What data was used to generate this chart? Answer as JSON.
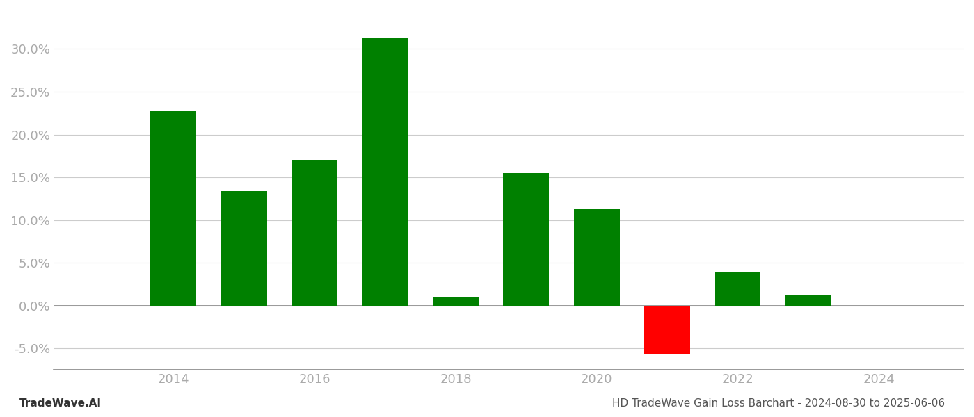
{
  "years": [
    2014,
    2015,
    2016,
    2017,
    2018,
    2019,
    2020,
    2021,
    2022,
    2023
  ],
  "values": [
    0.227,
    0.134,
    0.17,
    0.313,
    0.01,
    0.155,
    0.113,
    -0.057,
    0.039,
    0.013
  ],
  "bar_colors": [
    "#008000",
    "#008000",
    "#008000",
    "#008000",
    "#008000",
    "#008000",
    "#008000",
    "#ff0000",
    "#008000",
    "#008000"
  ],
  "xlim": [
    2012.3,
    2025.2
  ],
  "ylim": [
    -0.075,
    0.345
  ],
  "yticks": [
    -0.05,
    0.0,
    0.05,
    0.1,
    0.15,
    0.2,
    0.25,
    0.3
  ],
  "xticks": [
    2014,
    2016,
    2018,
    2020,
    2022,
    2024
  ],
  "title": "HD TradeWave Gain Loss Barchart - 2024-08-30 to 2025-06-06",
  "watermark": "TradeWave.AI",
  "background_color": "#ffffff",
  "grid_color": "#cccccc",
  "bar_width": 0.65,
  "tick_label_color": "#aaaaaa",
  "title_color": "#555555",
  "watermark_color": "#333333",
  "spine_color": "#888888",
  "title_fontsize": 11,
  "watermark_fontsize": 11,
  "tick_fontsize": 13
}
